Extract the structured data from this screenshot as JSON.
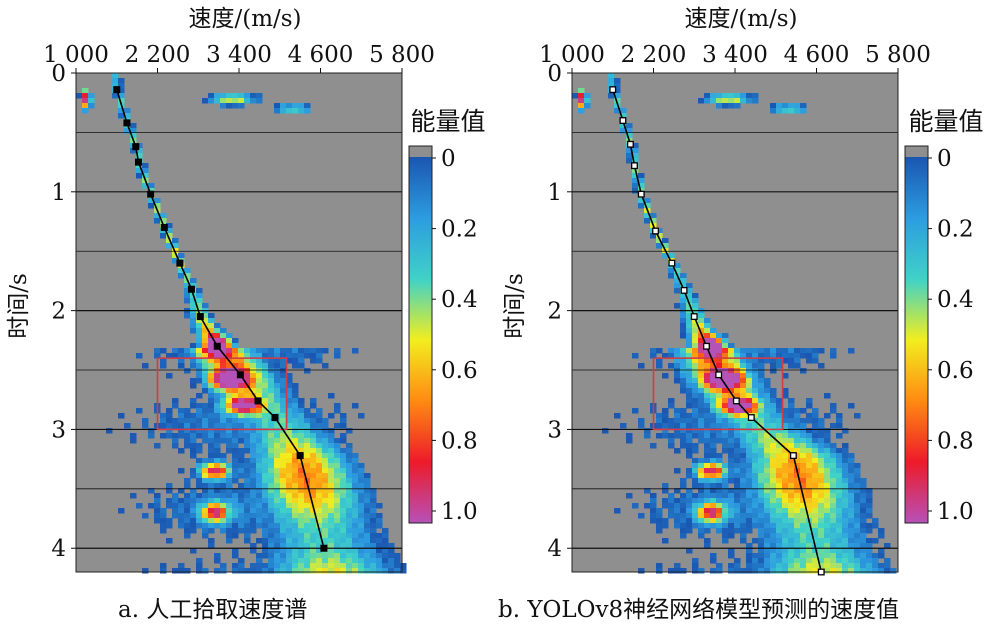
{
  "panels": [
    {
      "caption": "a. 人工拾取速度谱",
      "x_title": "速度/(m/s)",
      "y_title": "时间/s",
      "colorbar_title": "能量值"
    },
    {
      "caption": "b. YOLOv8神经网络模型预测的速度值",
      "x_title": "速度/(m/s)",
      "y_title": "时间/s",
      "colorbar_title": "能量值"
    }
  ],
  "chart_data": [
    {
      "type": "heatmap",
      "title": "a. 人工拾取速度谱",
      "xlabel": "速度/(m/s)",
      "ylabel": "时间/s",
      "x_axis_position": "top",
      "xlim": [
        1000,
        5800
      ],
      "ylim": [
        0,
        4.2
      ],
      "x_ticks": [
        1000,
        2200,
        3400,
        4600,
        5800
      ],
      "x_tick_labels": [
        "1 000",
        "2 200",
        "3 400",
        "4 600",
        "5 800"
      ],
      "y_ticks": [
        0,
        1,
        2,
        3,
        4
      ],
      "y_tick_labels": [
        "0",
        "1",
        "2",
        "3",
        "4"
      ],
      "colorbar": {
        "title": "能量值",
        "ticks": [
          0,
          0.2,
          0.4,
          0.6,
          0.8,
          1.0
        ],
        "tick_labels": [
          "0",
          "0.2",
          "0.4",
          "0.6",
          "0.8",
          "1.0"
        ],
        "direction": "top-to-bottom",
        "colors": [
          "#1a56b0",
          "#2d9ce0",
          "#3fd2c8",
          "#f2ee1e",
          "#ff8a12",
          "#ee1a2a",
          "#b651b8"
        ]
      },
      "background_color": "#8f8f8f",
      "highlight_box": {
        "x": [
          2200,
          4100
        ],
        "y": [
          2.4,
          3.0
        ],
        "color": "#d03c4a"
      },
      "pick_series": {
        "name": "",
        "marker": "square",
        "x": [
          1600,
          1750,
          1880,
          1920,
          2100,
          2300,
          2530,
          2700,
          2830,
          3080,
          3420,
          3680,
          3930,
          4300,
          4650
        ],
        "y": [
          0.14,
          0.42,
          0.62,
          0.75,
          1.02,
          1.3,
          1.6,
          1.82,
          2.05,
          2.3,
          2.54,
          2.76,
          2.9,
          3.22,
          4.0
        ]
      }
    },
    {
      "type": "heatmap",
      "title": "b. YOLOv8神经网络模型预测的速度值",
      "xlabel": "速度/(m/s)",
      "ylabel": "时间/s",
      "x_axis_position": "top",
      "xlim": [
        1000,
        5800
      ],
      "ylim": [
        0,
        4.2
      ],
      "x_ticks": [
        1000,
        2200,
        3400,
        4600,
        5800
      ],
      "x_tick_labels": [
        "1 000",
        "2 200",
        "3 400",
        "4 600",
        "5 800"
      ],
      "y_ticks": [
        0,
        1,
        2,
        3,
        4
      ],
      "y_tick_labels": [
        "0",
        "1",
        "2",
        "3",
        "4"
      ],
      "colorbar": {
        "title": "能量值",
        "ticks": [
          0,
          0.2,
          0.4,
          0.6,
          0.8,
          1.0
        ],
        "tick_labels": [
          "0",
          "0.2",
          "0.4",
          "0.6",
          "0.8",
          "1.0"
        ],
        "direction": "top-to-bottom",
        "colors": [
          "#1a56b0",
          "#2d9ce0",
          "#3fd2c8",
          "#f2ee1e",
          "#ff8a12",
          "#ee1a2a",
          "#b651b8"
        ]
      },
      "background_color": "#8f8f8f",
      "highlight_box": {
        "x": [
          2200,
          4100
        ],
        "y": [
          2.4,
          3.0
        ],
        "color": "#d03c4a"
      },
      "pick_series": {
        "name": "",
        "marker": "square-small",
        "x": [
          1600,
          1750,
          1860,
          1920,
          2020,
          2230,
          2470,
          2650,
          2800,
          2980,
          3160,
          3420,
          3640,
          4260,
          4670
        ],
        "y": [
          0.14,
          0.4,
          0.6,
          0.78,
          1.02,
          1.33,
          1.6,
          1.83,
          2.05,
          2.3,
          2.54,
          2.76,
          2.9,
          3.22,
          4.2
        ]
      }
    }
  ]
}
